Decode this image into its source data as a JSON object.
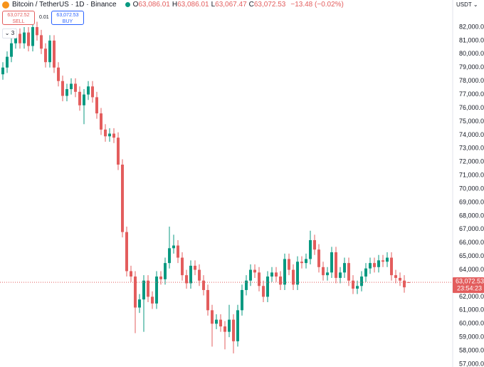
{
  "chart_data": {
    "type": "candlestick",
    "title": "Bitcoin / TetherUS · 1D · Binance",
    "header_values": [
      {
        "key": "O",
        "value": "63,086.01"
      },
      {
        "key": "H",
        "value": "63,086.01"
      },
      {
        "key": "L",
        "value": "63,067.47"
      },
      {
        "key": "C",
        "value": "63,072.53"
      }
    ],
    "change": "−13.48 (−0.02%)",
    "sell_price": "63,072.52",
    "sell_label": "SELL",
    "spread": "0.01",
    "buy_price": "63,072.53",
    "buy_label": "BUY",
    "collapsed_count": "3",
    "currency": "USDT",
    "last_price_label": "63,072.53",
    "countdown": "23:54:23",
    "up_color": "#089981",
    "down_color": "#e35d5d",
    "grid": false,
    "ylim": [
      56790,
      84010
    ],
    "yticks": [
      {
        "value": 57000,
        "label": "57,000.00"
      },
      {
        "value": 58000,
        "label": "58,000.00"
      },
      {
        "value": 59000,
        "label": "59,000.00"
      },
      {
        "value": 60000,
        "label": "60,000.00"
      },
      {
        "value": 61000,
        "label": "61,000.00"
      },
      {
        "value": 62000,
        "label": "62,000.00"
      },
      {
        "value": 63000,
        "label": "63,000.00"
      },
      {
        "value": 64000,
        "label": "64,000.00"
      },
      {
        "value": 65000,
        "label": "65,000.00"
      },
      {
        "value": 66000,
        "label": "66,000.00"
      },
      {
        "value": 67000,
        "label": "67,000.00"
      },
      {
        "value": 68000,
        "label": "68,000.00"
      },
      {
        "value": 69000,
        "label": "69,000.00"
      },
      {
        "value": 70000,
        "label": "70,000.00"
      },
      {
        "value": 71000,
        "label": "71,000.00"
      },
      {
        "value": 72000,
        "label": "72,000.00"
      },
      {
        "value": 73000,
        "label": "73,000.00"
      },
      {
        "value": 74000,
        "label": "74,000.00"
      },
      {
        "value": 75000,
        "label": "75,000.00"
      },
      {
        "value": 76000,
        "label": "76,000.00"
      },
      {
        "value": 77000,
        "label": "77,000.00"
      },
      {
        "value": 78000,
        "label": "78,000.00"
      },
      {
        "value": 79000,
        "label": "79,000.00"
      },
      {
        "value": 80000,
        "label": "80,000.00"
      },
      {
        "value": 81000,
        "label": "81,000.00"
      },
      {
        "value": 82000,
        "label": "82,000.00"
      }
    ],
    "open": [
      78500,
      79000,
      79800,
      80800,
      81500,
      80800,
      81600,
      80600,
      82000,
      81400,
      80400,
      79400,
      81000,
      79000,
      78000,
      76900,
      77400,
      77800,
      77200,
      76200,
      77000,
      77600,
      76800,
      75600,
      74400,
      73900,
      74100,
      73800,
      71800,
      66800,
      63900,
      63500,
      61200,
      61800,
      63200,
      62000,
      61500,
      63500,
      63300,
      64500,
      65600,
      65800,
      64900,
      63600,
      63000,
      64300,
      64000,
      63200,
      62500,
      61000,
      60000,
      60300,
      59800,
      59400,
      60300,
      58700,
      61000,
      62500,
      63200,
      64000,
      63800,
      62800,
      62000,
      63500,
      63800,
      63500,
      62900,
      64800,
      64000,
      62900,
      64600,
      64500,
      64800,
      66200,
      65500,
      64200,
      63600,
      63800,
      65300,
      63400,
      63800,
      64500,
      63200,
      62600,
      62800,
      63500,
      64100,
      64500,
      64200,
      64700,
      64600,
      64900,
      63600,
      63400,
      63200,
      63086.01
    ],
    "high": [
      79400,
      80200,
      81200,
      81900,
      81900,
      82000,
      82000,
      82900,
      82400,
      81800,
      80800,
      81400,
      81400,
      79400,
      78400,
      77800,
      78200,
      78200,
      77600,
      77400,
      78000,
      78000,
      77200,
      76000,
      74800,
      74500,
      74500,
      74200,
      72200,
      67200,
      64300,
      63900,
      62200,
      63600,
      63600,
      62400,
      63900,
      63900,
      64900,
      67200,
      66600,
      66200,
      65300,
      64000,
      64700,
      64700,
      64400,
      63600,
      62900,
      61400,
      60700,
      60700,
      60200,
      61400,
      60700,
      61400,
      62900,
      63600,
      64400,
      64400,
      64200,
      63200,
      63900,
      64200,
      64200,
      63900,
      65200,
      65200,
      64400,
      65000,
      65000,
      65200,
      66900,
      66600,
      65900,
      64600,
      64200,
      65700,
      65700,
      64200,
      64900,
      64900,
      63600,
      63200,
      63900,
      64500,
      64900,
      64900,
      65100,
      65100,
      65300,
      65300,
      64000,
      63800,
      63600,
      63086.01
    ],
    "low": [
      78100,
      78600,
      79400,
      80400,
      80400,
      80400,
      80200,
      80200,
      81000,
      80000,
      79000,
      79000,
      78600,
      77600,
      76500,
      76500,
      77000,
      76800,
      75800,
      74800,
      76600,
      76400,
      75200,
      74000,
      73500,
      73500,
      73400,
      71400,
      66400,
      63500,
      63100,
      59300,
      60800,
      59400,
      61600,
      61100,
      61100,
      62900,
      62900,
      64100,
      65200,
      64500,
      63200,
      62600,
      62600,
      63600,
      62800,
      62100,
      60600,
      58300,
      59600,
      59400,
      58100,
      59000,
      57800,
      58300,
      60600,
      62100,
      62800,
      63400,
      62400,
      61600,
      61600,
      63100,
      63100,
      62500,
      62500,
      63600,
      62500,
      62500,
      64100,
      64100,
      64400,
      65100,
      63800,
      63200,
      63200,
      63400,
      63000,
      63000,
      63400,
      62800,
      62200,
      62200,
      62400,
      63100,
      63700,
      63800,
      63800,
      64200,
      64200,
      63200,
      63000,
      62800,
      62300,
      63067.47
    ],
    "close": [
      79000,
      79800,
      80800,
      81500,
      80800,
      81600,
      80600,
      82000,
      81400,
      80400,
      79400,
      81000,
      79000,
      78000,
      76900,
      77400,
      77800,
      77200,
      76200,
      77000,
      77600,
      76800,
      75600,
      74400,
      73900,
      74100,
      73800,
      71800,
      66800,
      63900,
      63500,
      61200,
      61800,
      63200,
      62000,
      61500,
      63500,
      63300,
      64500,
      65600,
      65800,
      64900,
      63600,
      63000,
      64300,
      64000,
      63200,
      62500,
      61000,
      60000,
      60300,
      59800,
      59400,
      60300,
      58700,
      61000,
      62500,
      63200,
      64000,
      63800,
      62800,
      62000,
      63500,
      63800,
      63500,
      62900,
      64800,
      64000,
      62900,
      64600,
      64500,
      64800,
      66200,
      65500,
      64200,
      63600,
      63800,
      65300,
      63400,
      63800,
      64500,
      63200,
      62600,
      62800,
      63500,
      64100,
      64500,
      64200,
      64700,
      64600,
      64900,
      63600,
      63400,
      63200,
      62700,
      63072.53
    ]
  }
}
